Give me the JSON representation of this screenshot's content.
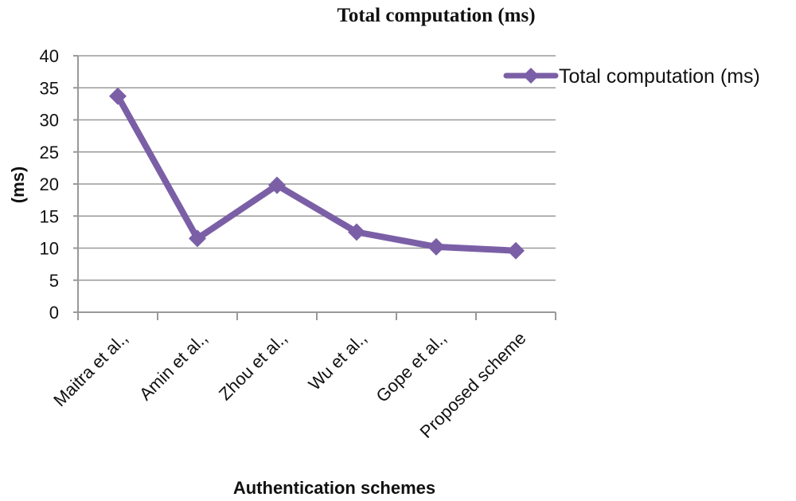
{
  "chart_data": {
    "type": "line",
    "title": "Total computation (ms)",
    "xlabel": "Authentication schemes",
    "ylabel": "(ms)",
    "ylim": [
      0,
      40
    ],
    "yticks": [
      0,
      5,
      10,
      15,
      20,
      25,
      30,
      35,
      40
    ],
    "grid": true,
    "legend_position": "top-right",
    "categories": [
      "Maitra et al.,",
      "Amin et al.,",
      "Zhou et al.,",
      "Wu et al.,",
      "Gope et al.,",
      "Proposed scheme"
    ],
    "series": [
      {
        "name": "Total computation (ms)",
        "color": "#7b5fa6",
        "marker": "diamond",
        "values": [
          33.7,
          11.5,
          19.8,
          12.5,
          10.2,
          9.6
        ]
      }
    ]
  }
}
